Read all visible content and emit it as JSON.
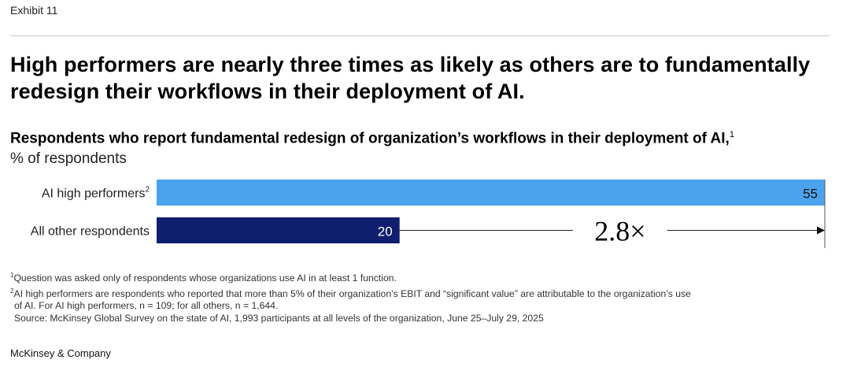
{
  "exhibit": "Exhibit 11",
  "headline": "High performers are nearly three times as likely as others are to fundamentally redesign their workflows in their deployment of AI.",
  "subtitle": "Respondents who report fundamental redesign of organization’s workflows in their deployment of AI,",
  "subtitle_note": "1",
  "unit": "% of respondents",
  "chart_data": {
    "type": "bar",
    "orientation": "horizontal",
    "categories": [
      "AI high performers",
      "All other respondents"
    ],
    "category_notes": [
      "2",
      ""
    ],
    "values": [
      55,
      20
    ],
    "colors": [
      "#4aa3ec",
      "#0f1e6e"
    ],
    "xlim": [
      0,
      55
    ],
    "annotation": "2.8×",
    "grid": false
  },
  "footnotes": [
    {
      "mark": "1",
      "text": "Question was asked only of respondents whose organizations use AI in at least 1 function."
    },
    {
      "mark": "2",
      "text": "AI high performers are respondents who reported that more than 5% of their organization’s EBIT and “significant value” are attributable to the organization’s use"
    },
    {
      "mark": "",
      "text": "of AI. For AI high performers, n = 109; for all others, n = 1,644."
    },
    {
      "mark": "",
      "text": "Source: McKinsey Global Survey on the state of AI, 1,993 participants at all levels of the organization, June 25–July 29, 2025"
    }
  ],
  "brand": "McKinsey & Company"
}
